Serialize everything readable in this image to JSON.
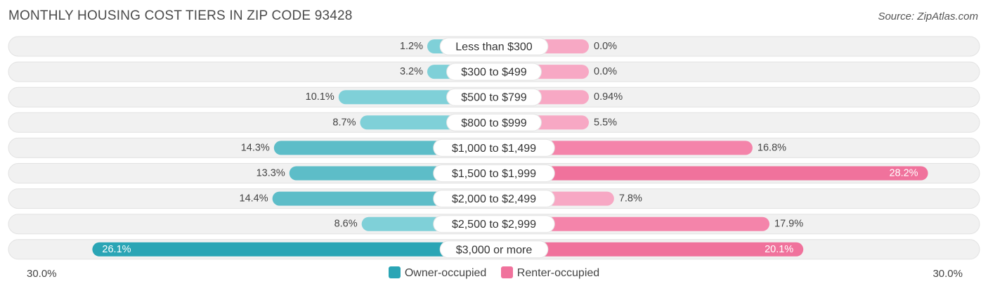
{
  "header": {
    "title": "MONTHLY HOUSING COST TIERS IN ZIP CODE 93428",
    "source": "Source: ZipAtlas.com"
  },
  "colors": {
    "owner_light": "#7fd0d8",
    "owner_dark": "#2aa5b5",
    "renter_light": "#f7a8c4",
    "renter_dark": "#f0729c",
    "track": "#f1f1f1"
  },
  "chart_data": {
    "type": "bar",
    "orientation": "diverging-horizontal",
    "title": "MONTHLY HOUSING COST TIERS IN ZIP CODE 93428",
    "categories": [
      "Less than $300",
      "$300 to $499",
      "$500 to $799",
      "$800 to $999",
      "$1,000 to $1,499",
      "$1,500 to $1,999",
      "$2,000 to $2,499",
      "$2,500 to $2,999",
      "$3,000 or more"
    ],
    "series": [
      {
        "name": "Owner-occupied",
        "side": "left",
        "values": [
          1.2,
          3.2,
          10.1,
          8.7,
          14.3,
          13.3,
          14.4,
          8.6,
          26.1
        ],
        "labels": [
          "1.2%",
          "3.2%",
          "10.1%",
          "8.7%",
          "14.3%",
          "13.3%",
          "14.4%",
          "8.6%",
          "26.1%"
        ]
      },
      {
        "name": "Renter-occupied",
        "side": "right",
        "values": [
          0.0,
          0.0,
          0.94,
          5.5,
          16.8,
          28.2,
          7.8,
          17.9,
          20.1
        ],
        "labels": [
          "0.0%",
          "0.0%",
          "0.94%",
          "5.5%",
          "16.8%",
          "28.2%",
          "7.8%",
          "17.9%",
          "20.1%"
        ]
      }
    ],
    "xlim": [
      -30,
      30
    ],
    "axis_labels": {
      "left": "30.0%",
      "right": "30.0%"
    },
    "legend_position": "bottom-center"
  },
  "legend": {
    "owner": "Owner-occupied",
    "renter": "Renter-occupied"
  }
}
